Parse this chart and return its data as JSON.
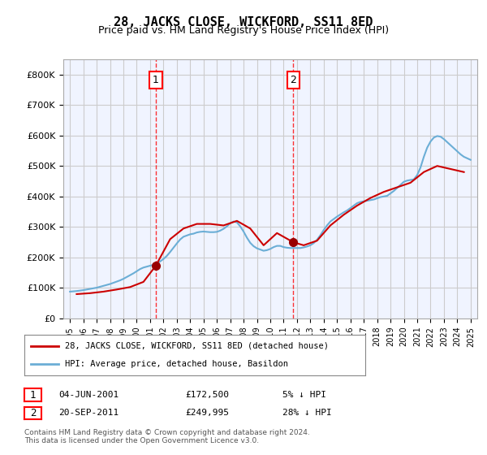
{
  "title": "28, JACKS CLOSE, WICKFORD, SS11 8ED",
  "subtitle": "Price paid vs. HM Land Registry's House Price Index (HPI)",
  "legend_line1": "28, JACKS CLOSE, WICKFORD, SS11 8ED (detached house)",
  "legend_line2": "HPI: Average price, detached house, Basildon",
  "footnote": "Contains HM Land Registry data © Crown copyright and database right 2024.\nThis data is licensed under the Open Government Licence v3.0.",
  "annotation1": {
    "label": "1",
    "date": "04-JUN-2001",
    "price": "£172,500",
    "pct": "5% ↓ HPI"
  },
  "annotation2": {
    "label": "2",
    "date": "20-SEP-2011",
    "price": "£249,995",
    "pct": "28% ↓ HPI"
  },
  "hpi_color": "#6baed6",
  "price_color": "#cc0000",
  "marker_color": "#990000",
  "grid_color": "#cccccc",
  "background_color": "#ddeeff",
  "plot_bg": "#f0f4ff",
  "ylim": [
    0,
    850000
  ],
  "yticks": [
    0,
    100000,
    200000,
    300000,
    400000,
    500000,
    600000,
    700000,
    800000
  ],
  "ytick_labels": [
    "£0",
    "£100K",
    "£200K",
    "£300K",
    "£400K",
    "£500K",
    "£600K",
    "£700K",
    "£800K"
  ],
  "xlim_start": 1994.5,
  "xlim_end": 2025.5,
  "xticks": [
    1995,
    1996,
    1997,
    1998,
    1999,
    2000,
    2001,
    2002,
    2003,
    2004,
    2005,
    2006,
    2007,
    2008,
    2009,
    2010,
    2011,
    2012,
    2013,
    2014,
    2015,
    2016,
    2017,
    2018,
    2019,
    2020,
    2021,
    2022,
    2023,
    2024,
    2025
  ],
  "hpi_x": [
    1995,
    1995.25,
    1995.5,
    1995.75,
    1996,
    1996.25,
    1996.5,
    1996.75,
    1997,
    1997.25,
    1997.5,
    1997.75,
    1998,
    1998.25,
    1998.5,
    1998.75,
    1999,
    1999.25,
    1999.5,
    1999.75,
    2000,
    2000.25,
    2000.5,
    2000.75,
    2001,
    2001.25,
    2001.5,
    2001.75,
    2002,
    2002.25,
    2002.5,
    2002.75,
    2003,
    2003.25,
    2003.5,
    2003.75,
    2004,
    2004.25,
    2004.5,
    2004.75,
    2005,
    2005.25,
    2005.5,
    2005.75,
    2006,
    2006.25,
    2006.5,
    2006.75,
    2007,
    2007.25,
    2007.5,
    2007.75,
    2008,
    2008.25,
    2008.5,
    2008.75,
    2009,
    2009.25,
    2009.5,
    2009.75,
    2010,
    2010.25,
    2010.5,
    2010.75,
    2011,
    2011.25,
    2011.5,
    2011.75,
    2012,
    2012.25,
    2012.5,
    2012.75,
    2013,
    2013.25,
    2013.5,
    2013.75,
    2014,
    2014.25,
    2014.5,
    2014.75,
    2015,
    2015.25,
    2015.5,
    2015.75,
    2016,
    2016.25,
    2016.5,
    2016.75,
    2017,
    2017.25,
    2017.5,
    2017.75,
    2018,
    2018.25,
    2018.5,
    2018.75,
    2019,
    2019.25,
    2019.5,
    2019.75,
    2020,
    2020.25,
    2020.5,
    2020.75,
    2021,
    2021.25,
    2021.5,
    2021.75,
    2022,
    2022.25,
    2022.5,
    2022.75,
    2023,
    2023.25,
    2023.5,
    2023.75,
    2024,
    2024.25,
    2024.5,
    2024.75,
    2025
  ],
  "hpi_y": [
    88000,
    89000,
    90000,
    91500,
    93000,
    95000,
    97000,
    99000,
    101000,
    104000,
    107000,
    110000,
    113000,
    117000,
    121000,
    125000,
    130000,
    136000,
    142000,
    148000,
    155000,
    162000,
    167000,
    170000,
    173000,
    176000,
    181000,
    187000,
    195000,
    205000,
    218000,
    232000,
    246000,
    259000,
    268000,
    272000,
    276000,
    278000,
    282000,
    284000,
    285000,
    284000,
    283000,
    283000,
    284000,
    288000,
    294000,
    302000,
    312000,
    318000,
    315000,
    302000,
    285000,
    265000,
    248000,
    237000,
    230000,
    226000,
    222000,
    224000,
    228000,
    234000,
    238000,
    238000,
    234000,
    232000,
    231000,
    231000,
    231000,
    231000,
    233000,
    236000,
    240000,
    247000,
    258000,
    273000,
    290000,
    305000,
    318000,
    326000,
    334000,
    341000,
    348000,
    354000,
    362000,
    370000,
    378000,
    382000,
    384000,
    386000,
    388000,
    390000,
    394000,
    398000,
    400000,
    402000,
    410000,
    418000,
    428000,
    438000,
    448000,
    452000,
    454000,
    456000,
    470000,
    495000,
    530000,
    560000,
    580000,
    593000,
    598000,
    596000,
    588000,
    578000,
    568000,
    558000,
    548000,
    538000,
    530000,
    525000,
    520000
  ],
  "price_x": [
    1995.5,
    1996.5,
    1997.5,
    1998.5,
    1999.5,
    2000.5,
    2001.42,
    2002.5,
    2003.5,
    2004.5,
    2005.5,
    2006.5,
    2007.5,
    2008.5,
    2009.5,
    2010.5,
    2011.72,
    2012.5,
    2013.5,
    2014.5,
    2015.5,
    2016.5,
    2017.5,
    2018.5,
    2019.5,
    2020.5,
    2021.5,
    2022.5,
    2023.5,
    2024.5
  ],
  "price_y": [
    80000,
    83000,
    88000,
    95000,
    103000,
    120000,
    172500,
    260000,
    295000,
    310000,
    310000,
    305000,
    320000,
    295000,
    240000,
    280000,
    249995,
    240000,
    255000,
    305000,
    340000,
    370000,
    395000,
    415000,
    430000,
    445000,
    480000,
    500000,
    490000,
    480000
  ],
  "sale1_x": 2001.42,
  "sale1_y": 172500,
  "sale2_x": 2011.72,
  "sale2_y": 249995
}
